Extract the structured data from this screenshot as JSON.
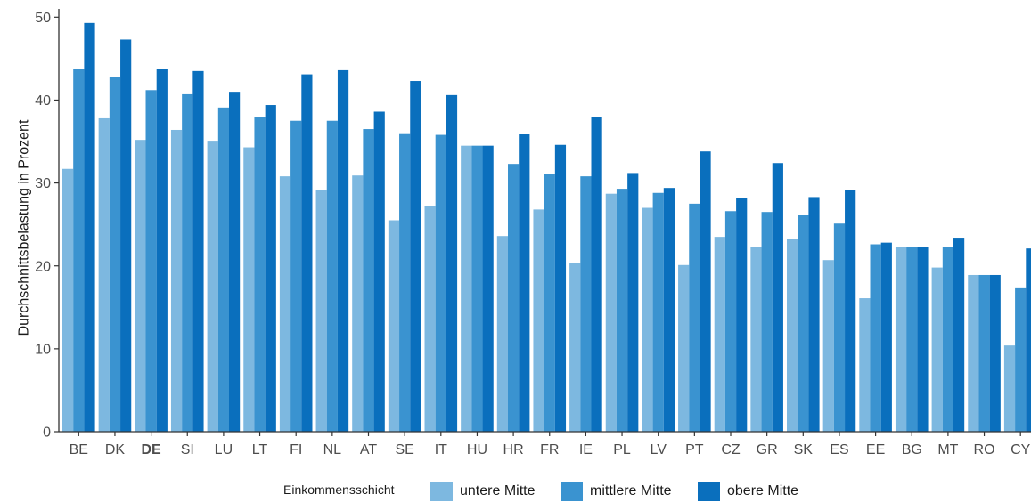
{
  "chart_data": {
    "type": "bar",
    "title": "",
    "xlabel": "",
    "ylabel": "Durchschnittsbelastung in Prozent",
    "ylim": [
      0,
      51
    ],
    "yticks": [
      0,
      10,
      20,
      30,
      40,
      50
    ],
    "grid": false,
    "categories": [
      "BE",
      "DK",
      "DE",
      "SI",
      "LU",
      "LT",
      "FI",
      "NL",
      "AT",
      "SE",
      "IT",
      "HU",
      "HR",
      "FR",
      "IE",
      "PL",
      "LV",
      "PT",
      "CZ",
      "GR",
      "SK",
      "ES",
      "EE",
      "BG",
      "MT",
      "RO",
      "CY"
    ],
    "highlight_category": "DE",
    "legend": {
      "title": "Einkommensschicht",
      "position": "bottom"
    },
    "series": [
      {
        "name": "untere Mitte",
        "color": "#7db8e0",
        "values": [
          31.7,
          37.8,
          35.2,
          36.4,
          35.1,
          34.3,
          30.8,
          29.1,
          30.9,
          25.5,
          27.2,
          34.5,
          23.6,
          26.8,
          20.4,
          28.7,
          27.0,
          20.1,
          23.5,
          22.3,
          23.2,
          20.7,
          16.1,
          22.3,
          19.8,
          18.9,
          10.4
        ]
      },
      {
        "name": "mittlere Mitte",
        "color": "#3a93d0",
        "values": [
          43.7,
          42.8,
          41.2,
          40.7,
          39.1,
          37.9,
          37.5,
          37.5,
          36.5,
          36.0,
          35.8,
          34.5,
          32.3,
          31.1,
          30.8,
          29.3,
          28.8,
          27.5,
          26.6,
          26.5,
          26.1,
          25.1,
          22.6,
          22.3,
          22.3,
          18.9,
          17.3
        ]
      },
      {
        "name": "obere Mitte",
        "color": "#0a6fbd",
        "values": [
          49.3,
          47.3,
          43.7,
          43.5,
          41.0,
          39.4,
          43.1,
          43.6,
          38.6,
          42.3,
          40.6,
          34.5,
          35.9,
          34.6,
          38.0,
          31.2,
          29.4,
          33.8,
          28.2,
          32.4,
          28.3,
          29.2,
          22.8,
          22.3,
          23.4,
          18.9,
          22.1
        ]
      }
    ]
  }
}
